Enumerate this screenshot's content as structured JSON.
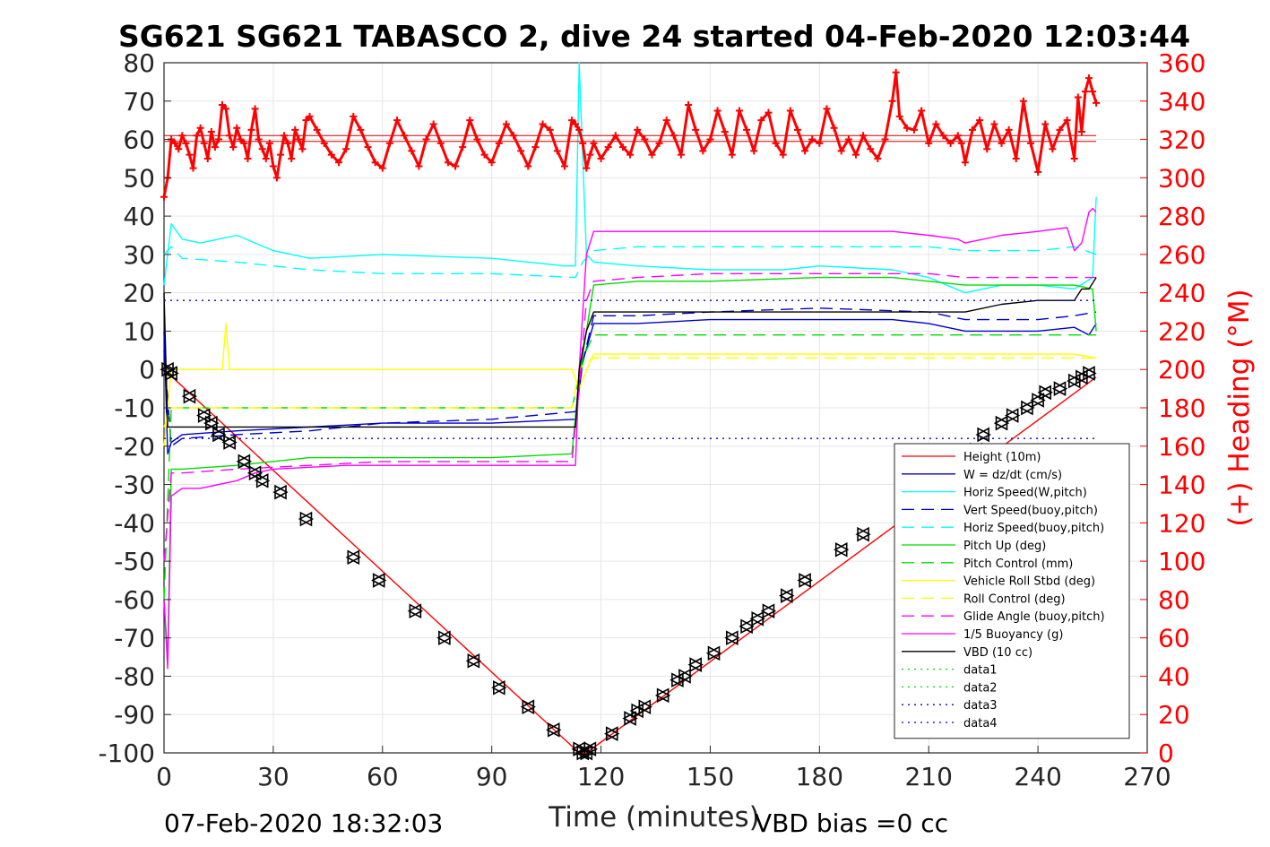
{
  "chart_data": {
    "type": "line",
    "title": "SG621 SG621 TABASCO 2, dive 24 started 04-Feb-2020 12:03:44",
    "xlabel": "Time (minutes)",
    "ylabel_right": "(+) Heading (°M)",
    "xlim": [
      0,
      270
    ],
    "ylim": [
      -100,
      80
    ],
    "ylim_right": [
      0,
      360
    ],
    "x_ticks": [
      0,
      30,
      60,
      90,
      120,
      150,
      180,
      210,
      240,
      270
    ],
    "y_ticks": [
      80,
      70,
      60,
      50,
      40,
      30,
      20,
      10,
      0,
      -10,
      -20,
      -30,
      -40,
      -50,
      -60,
      -70,
      -80,
      -90,
      -100
    ],
    "y_right_ticks": [
      360,
      340,
      320,
      300,
      280,
      260,
      240,
      220,
      200,
      180,
      160,
      140,
      120,
      100,
      80,
      60,
      40,
      20,
      0
    ],
    "grid": true,
    "legend_position": "lower-right",
    "footer_left": "07-Feb-2020 18:32:03",
    "footer_right": "VBD bias =0 cc",
    "colors": {
      "height": "#ff0000",
      "w": "#0000cc",
      "horiz": "#00ffff",
      "pitch": "#00dd00",
      "roll": "#ffff00",
      "glide": "#ff00ff",
      "vbd": "#000000",
      "heading": "#ff0000",
      "axis_right": "#ff0000"
    },
    "legend": [
      {
        "name": "Height (10m)",
        "color": "#ff0000",
        "dash": "solid"
      },
      {
        "name": "W = dz/dt (cm/s)",
        "color": "#0000cc",
        "dash": "solid"
      },
      {
        "name": "Horiz Speed(W,pitch)",
        "color": "#00ffff",
        "dash": "solid"
      },
      {
        "name": "Vert Speed(buoy,pitch)",
        "color": "#0000cc",
        "dash": "dashed"
      },
      {
        "name": "Horiz Speed(buoy,pitch)",
        "color": "#00ffff",
        "dash": "dashed"
      },
      {
        "name": "Pitch Up (deg)",
        "color": "#00dd00",
        "dash": "solid"
      },
      {
        "name": "Pitch Control (mm)",
        "color": "#00dd00",
        "dash": "dashed"
      },
      {
        "name": "Vehicle Roll Stbd (deg)",
        "color": "#ffff00",
        "dash": "solid"
      },
      {
        "name": "Roll Control (deg)",
        "color": "#ffff00",
        "dash": "dashed"
      },
      {
        "name": "Glide Angle (buoy,pitch)",
        "color": "#ff00ff",
        "dash": "dashed"
      },
      {
        "name": "1/5 Buoyancy (g)",
        "color": "#ff00ff",
        "dash": "solid"
      },
      {
        "name": "VBD (10 cc)",
        "color": "#000000",
        "dash": "solid"
      },
      {
        "name": "data1",
        "color": "#00dd00",
        "dash": "dotted"
      },
      {
        "name": "data2",
        "color": "#00dd00",
        "dash": "dotted"
      },
      {
        "name": "data3",
        "color": "#0000cc",
        "dash": "dotted"
      },
      {
        "name": "data4",
        "color": "#0000cc",
        "dash": "dotted"
      }
    ],
    "series": [
      {
        "name": "Height (10m)",
        "axis": "left",
        "x": [
          0,
          114,
          116,
          256
        ],
        "y": [
          0,
          -100,
          -100,
          -2
        ]
      },
      {
        "name": "Height markers",
        "axis": "left",
        "x": [
          1,
          2,
          7,
          11,
          13,
          15,
          18,
          22,
          25,
          27,
          32,
          39,
          52,
          59,
          69,
          77,
          85,
          92,
          100,
          107,
          114,
          115,
          116,
          117,
          123,
          128,
          130,
          132,
          137,
          141,
          143,
          146,
          151,
          156,
          160,
          163,
          166,
          171,
          176,
          186,
          192,
          223,
          225,
          230,
          233,
          237,
          240,
          242,
          246,
          250,
          252,
          254
        ],
        "y": [
          0,
          -1,
          -7,
          -12,
          -14,
          -17,
          -19,
          -24,
          -27,
          -29,
          -32,
          -39,
          -49,
          -55,
          -63,
          -70,
          -76,
          -83,
          -88,
          -94,
          -99,
          -100,
          -100,
          -99,
          -95,
          -91,
          -89,
          -88,
          -85,
          -81,
          -80,
          -77,
          -74,
          -70,
          -67,
          -65,
          -63,
          -59,
          -55,
          -47,
          -43,
          -21,
          -17,
          -14,
          -12,
          -10,
          -8,
          -6,
          -5,
          -3,
          -2,
          -1
        ]
      },
      {
        "name": "W = dz/dt (cm/s)",
        "axis": "left",
        "x": [
          0,
          1,
          2,
          5,
          20,
          40,
          60,
          90,
          113,
          115,
          118,
          130,
          150,
          180,
          200,
          210,
          220,
          230,
          240,
          250,
          254,
          256
        ],
        "y": [
          10,
          -22,
          -19,
          -17,
          -16,
          -15,
          -14,
          -14,
          -13,
          2,
          12,
          12,
          13,
          13,
          13,
          12,
          10,
          10,
          10,
          11,
          9,
          12
        ]
      },
      {
        "name": "Horiz Speed(W,pitch)",
        "axis": "left",
        "x": [
          0,
          2,
          5,
          10,
          15,
          20,
          25,
          30,
          40,
          60,
          90,
          110,
          113,
          114,
          116,
          118,
          130,
          150,
          170,
          180,
          200,
          210,
          220,
          230,
          240,
          250,
          255,
          256
        ],
        "y": [
          22,
          38,
          34,
          33,
          34,
          35,
          33,
          31,
          29,
          30,
          29,
          27,
          27,
          80,
          30,
          28,
          27,
          26,
          26,
          27,
          26,
          24,
          20,
          22,
          22,
          21,
          24,
          45
        ]
      },
      {
        "name": "Vert Speed(buoy,pitch)",
        "axis": "left",
        "x": [
          0,
          2,
          5,
          20,
          40,
          60,
          90,
          113,
          115,
          118,
          130,
          150,
          180,
          210,
          220,
          240,
          250,
          256
        ],
        "y": [
          5,
          -20,
          -18,
          -17,
          -16,
          -14,
          -13,
          -11,
          2,
          14,
          14,
          15,
          16,
          15,
          13,
          13,
          14,
          15
        ]
      },
      {
        "name": "Horiz Speed(buoy,pitch)",
        "axis": "left",
        "x": [
          0,
          2,
          5,
          20,
          40,
          60,
          90,
          113,
          115,
          118,
          130,
          150,
          180,
          200,
          210,
          220,
          240,
          250,
          256
        ],
        "y": [
          30,
          32,
          29,
          28,
          26,
          25,
          25,
          24,
          28,
          31,
          32,
          32,
          32,
          32,
          32,
          31,
          31,
          32,
          30
        ]
      },
      {
        "name": "Pitch Up (deg)",
        "axis": "left",
        "x": [
          0,
          1,
          2,
          5,
          20,
          40,
          60,
          90,
          112,
          114,
          116,
          118,
          130,
          150,
          180,
          200,
          210,
          220,
          240,
          250,
          255,
          256
        ],
        "y": [
          -60,
          -75,
          -26,
          -26,
          -25,
          -23,
          -23,
          -23,
          -22,
          -2,
          10,
          22,
          23,
          23,
          24,
          24,
          23,
          22,
          22,
          22,
          21,
          10
        ]
      },
      {
        "name": "Pitch Control (mm)",
        "axis": "left",
        "x": [
          0,
          2,
          5,
          112,
          114,
          116,
          118,
          256
        ],
        "y": [
          -60,
          -10,
          -10,
          -10,
          -2,
          5,
          9,
          9
        ]
      },
      {
        "name": "Vehicle Roll Stbd (deg)",
        "axis": "left",
        "x": [
          0,
          2,
          8,
          16,
          17,
          18,
          30,
          60,
          90,
          112,
          114,
          117,
          118,
          130,
          150,
          170,
          200,
          230,
          250,
          256
        ],
        "y": [
          -20,
          0,
          0,
          0,
          12,
          0,
          0,
          0,
          0,
          0,
          -5,
          2,
          4,
          4,
          4,
          4,
          4,
          4,
          4,
          3
        ]
      },
      {
        "name": "Roll Control (deg)",
        "axis": "left",
        "x": [
          0,
          2,
          60,
          112,
          114,
          116,
          118,
          256
        ],
        "y": [
          -15,
          -10,
          -10,
          -10,
          0,
          2,
          3,
          3
        ]
      },
      {
        "name": "Glide Angle (buoy,pitch)",
        "axis": "left",
        "x": [
          0,
          2,
          5,
          20,
          40,
          60,
          90,
          112,
          114,
          116,
          118,
          130,
          150,
          180,
          210,
          220,
          240,
          250,
          256
        ],
        "y": [
          -50,
          -27,
          -27,
          -26,
          -25,
          -24,
          -24,
          -24,
          -5,
          18,
          23,
          24,
          25,
          25,
          25,
          24,
          24,
          24,
          24
        ]
      },
      {
        "name": "1/5 Buoyancy (g)",
        "axis": "left",
        "x": [
          0,
          1,
          2,
          5,
          10,
          20,
          25,
          30,
          50,
          90,
          112,
          113,
          114,
          116,
          118,
          120,
          150,
          180,
          200,
          210,
          218,
          220,
          230,
          240,
          248,
          250,
          252,
          254,
          255,
          256
        ],
        "y": [
          -60,
          -78,
          -33,
          -31,
          -31,
          -29,
          -27,
          -26,
          -25,
          -25,
          -25,
          -25,
          0,
          30,
          36,
          36,
          36,
          36,
          36,
          35,
          34,
          33,
          35,
          36,
          37,
          31,
          33,
          41,
          42,
          41
        ]
      },
      {
        "name": "VBD (10 cc)",
        "axis": "left",
        "x": [
          0,
          1,
          2,
          5,
          112,
          113,
          114,
          116,
          118,
          130,
          150,
          180,
          200,
          210,
          220,
          230,
          240,
          250,
          252,
          254,
          256
        ],
        "y": [
          20,
          -15,
          -15,
          -15,
          -15,
          -15,
          0,
          10,
          15,
          15,
          15,
          15,
          15,
          15,
          15,
          17,
          18,
          18,
          21,
          21,
          24
        ]
      },
      {
        "name": "data3",
        "axis": "left",
        "x": [
          0,
          256
        ],
        "y": [
          18,
          18
        ]
      },
      {
        "name": "data4",
        "axis": "left",
        "x": [
          0,
          256
        ],
        "y": [
          -18,
          -18
        ]
      },
      {
        "name": "heading_ref",
        "axis": "right",
        "x": [
          0,
          256
        ],
        "y": [
          322,
          322
        ]
      },
      {
        "name": "heading_ref2",
        "axis": "right",
        "x": [
          0,
          256
        ],
        "y": [
          319,
          319
        ]
      },
      {
        "name": "Heading",
        "axis": "right",
        "x": [
          0,
          1,
          2,
          3,
          4,
          5,
          6,
          7,
          8,
          9,
          10,
          11,
          12,
          13,
          14,
          15,
          16,
          17,
          18,
          19,
          20,
          21,
          22,
          23,
          24,
          25,
          26,
          27,
          28,
          29,
          30,
          31,
          32,
          33,
          34,
          35,
          36,
          37,
          38,
          39,
          40,
          42,
          44,
          46,
          48,
          50,
          52,
          54,
          56,
          58,
          60,
          62,
          64,
          66,
          68,
          70,
          72,
          74,
          76,
          78,
          80,
          82,
          84,
          86,
          88,
          90,
          92,
          94,
          96,
          98,
          100,
          102,
          104,
          106,
          108,
          110,
          112,
          113,
          114,
          115,
          116,
          117,
          118,
          120,
          122,
          124,
          126,
          128,
          130,
          132,
          134,
          136,
          138,
          140,
          142,
          144,
          146,
          148,
          150,
          152,
          154,
          156,
          158,
          160,
          162,
          164,
          166,
          168,
          170,
          172,
          174,
          176,
          178,
          180,
          182,
          184,
          186,
          188,
          190,
          192,
          194,
          196,
          198,
          200,
          201,
          202,
          204,
          206,
          208,
          210,
          212,
          214,
          216,
          218,
          219,
          220,
          222,
          224,
          226,
          228,
          230,
          232,
          234,
          236,
          238,
          240,
          242,
          244,
          246,
          248,
          250,
          251,
          252,
          253,
          254,
          255,
          256
        ],
        "y": [
          290,
          300,
          320,
          318,
          315,
          322,
          318,
          312,
          305,
          322,
          326,
          318,
          310,
          324,
          316,
          320,
          338,
          336,
          322,
          316,
          326,
          320,
          318,
          310,
          325,
          336,
          320,
          315,
          310,
          318,
          306,
          300,
          312,
          322,
          318,
          310,
          325,
          320,
          315,
          330,
          332,
          325,
          318,
          312,
          308,
          315,
          332,
          325,
          316,
          308,
          305,
          318,
          330,
          322,
          314,
          306,
          320,
          328,
          318,
          308,
          306,
          316,
          330,
          320,
          312,
          308,
          318,
          328,
          322,
          314,
          306,
          316,
          328,
          325,
          314,
          306,
          330,
          328,
          325,
          318,
          305,
          312,
          318,
          310,
          316,
          322,
          316,
          312,
          325,
          320,
          312,
          318,
          330,
          322,
          312,
          338,
          325,
          314,
          320,
          335,
          324,
          312,
          335,
          325,
          314,
          330,
          334,
          318,
          312,
          335,
          325,
          314,
          320,
          318,
          336,
          326,
          314,
          320,
          312,
          322,
          315,
          310,
          320,
          340,
          355,
          332,
          326,
          325,
          335,
          318,
          328,
          322,
          318,
          322,
          318,
          308,
          325,
          330,
          315,
          328,
          318,
          325,
          310,
          340,
          318,
          303,
          328,
          315,
          325,
          330,
          310,
          342,
          324,
          345,
          352,
          345,
          339
        ]
      }
    ]
  }
}
